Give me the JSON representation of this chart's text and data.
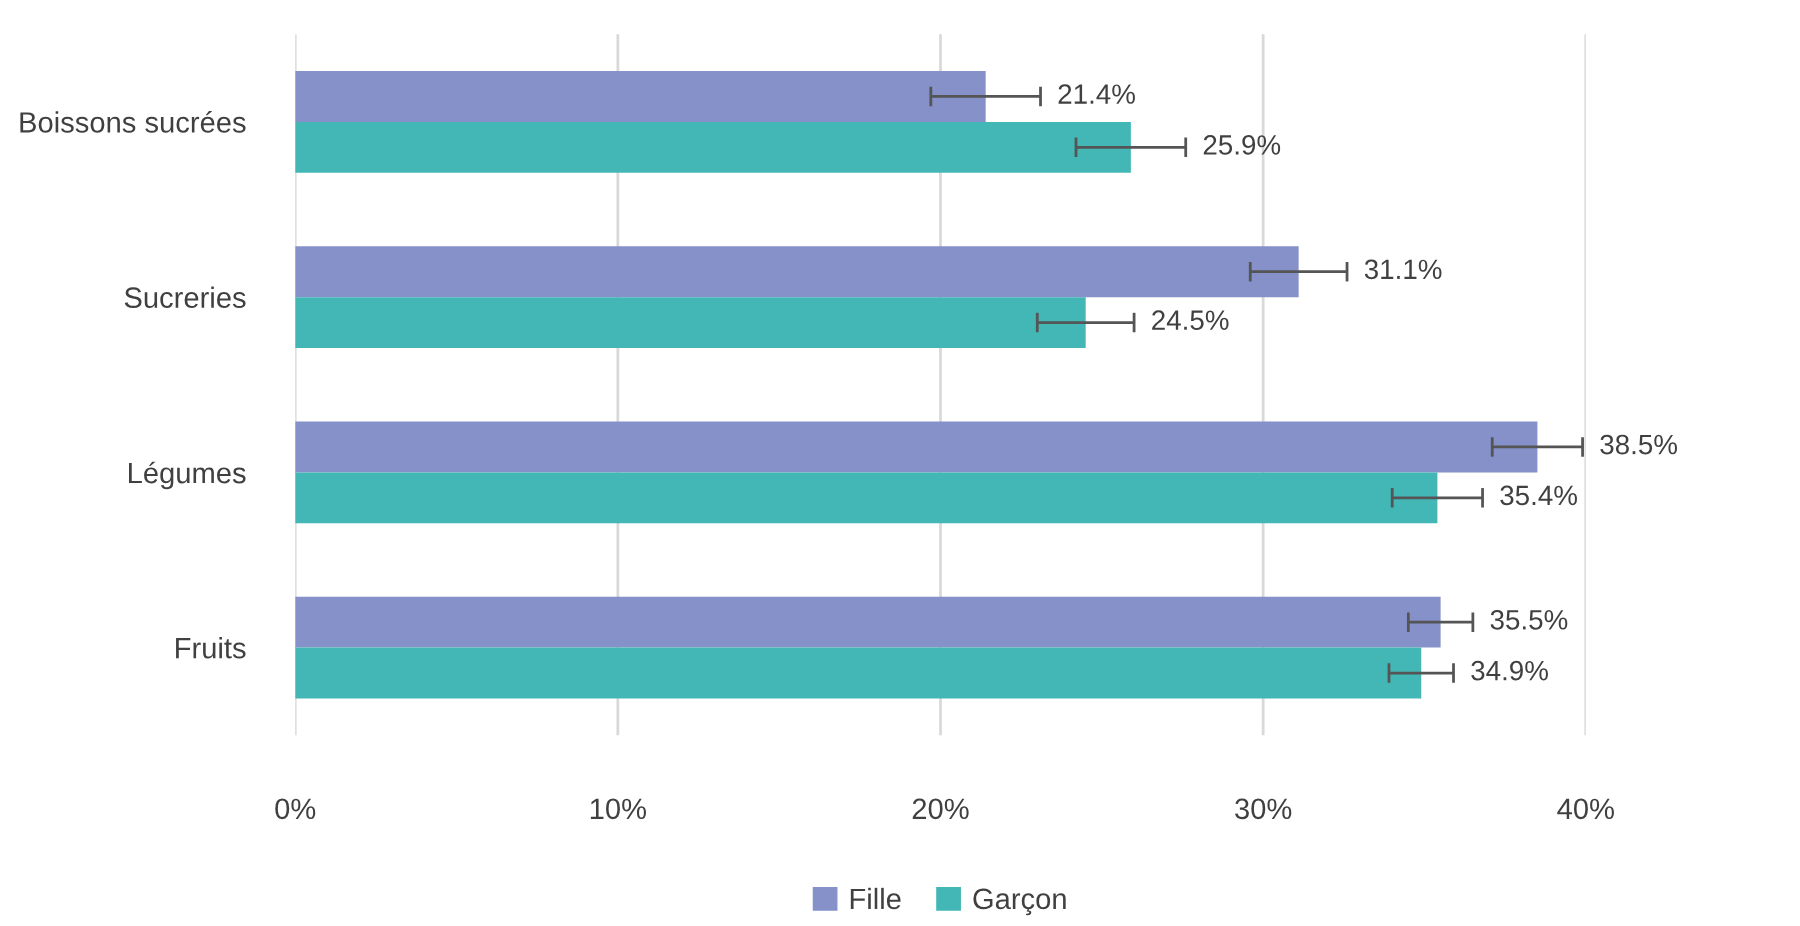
{
  "chart_data": {
    "type": "bar",
    "orientation": "horizontal",
    "categories": [
      "Boissons sucrées",
      "Sucreries",
      "Légumes",
      "Fruits"
    ],
    "series": [
      {
        "name": "Fille",
        "color": "#8591c8",
        "values": [
          21.4,
          31.1,
          38.5,
          35.5
        ],
        "errors": [
          1.7,
          1.5,
          1.4,
          1.0
        ],
        "value_labels": [
          "21.4%",
          "31.1%",
          "38.5%",
          "35.5%"
        ]
      },
      {
        "name": "Garçon",
        "color": "#43b7b6",
        "values": [
          25.9,
          24.5,
          35.4,
          34.9
        ],
        "errors": [
          1.7,
          1.5,
          1.4,
          1.0
        ],
        "value_labels": [
          "25.9%",
          "24.5%",
          "35.4%",
          "34.9%"
        ]
      }
    ],
    "xlim": [
      0,
      40
    ],
    "xticks": [
      {
        "value": 0,
        "label": "0%"
      },
      {
        "value": 10,
        "label": "10%"
      },
      {
        "value": 20,
        "label": "20%"
      },
      {
        "value": 30,
        "label": "30%"
      },
      {
        "value": 40,
        "label": "40%"
      }
    ],
    "grid": "x",
    "legend": "bottom"
  }
}
